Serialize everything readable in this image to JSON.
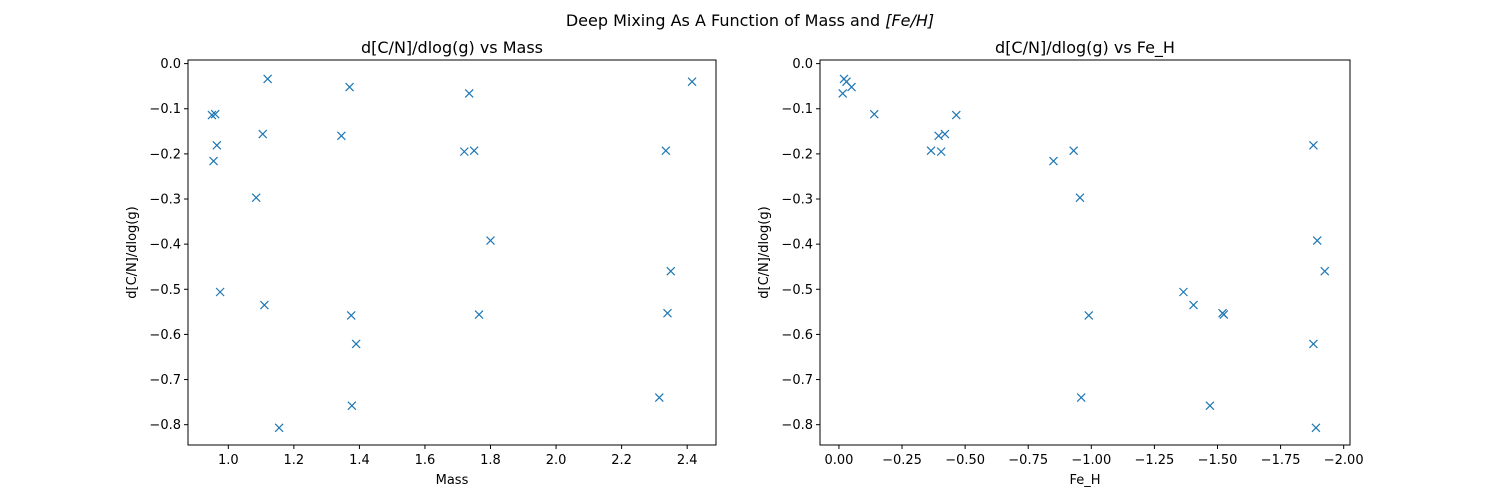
{
  "figure": {
    "suptitle_main": "Deep Mixing As A Function of Mass and ",
    "suptitle_math": "[Fe/H]"
  },
  "chart_data": [
    {
      "type": "scatter",
      "title": "d[C/N]/dlog(g) vs Mass",
      "xlabel": "Mass",
      "ylabel": "d[C/N]/dlog(g)",
      "xlim": [
        0.877,
        2.488
      ],
      "ylim": [
        -0.845,
        0.008
      ],
      "x_reversed": false,
      "xticks": [
        1.0,
        1.2,
        1.4,
        1.6,
        1.8,
        2.0,
        2.2,
        2.4
      ],
      "xtick_labels": [
        "1.0",
        "1.2",
        "1.4",
        "1.6",
        "1.8",
        "2.0",
        "2.2",
        "2.4"
      ],
      "yticks": [
        0.0,
        -0.1,
        -0.2,
        -0.3,
        -0.4,
        -0.5,
        -0.6,
        -0.7,
        -0.8
      ],
      "ytick_labels": [
        "0.0",
        "−0.1",
        "−0.2",
        "−0.3",
        "−0.4",
        "−0.5",
        "−0.6",
        "−0.7",
        "−0.8"
      ],
      "grid": false,
      "marker": "x",
      "color": "#1f77b4",
      "points": [
        {
          "x": 0.95,
          "y": -0.114
        },
        {
          "x": 0.96,
          "y": -0.112
        },
        {
          "x": 0.965,
          "y": -0.181
        },
        {
          "x": 0.955,
          "y": -0.216
        },
        {
          "x": 0.975,
          "y": -0.506
        },
        {
          "x": 1.085,
          "y": -0.297
        },
        {
          "x": 1.105,
          "y": -0.156
        },
        {
          "x": 1.11,
          "y": -0.535
        },
        {
          "x": 1.12,
          "y": -0.034
        },
        {
          "x": 1.155,
          "y": -0.807
        },
        {
          "x": 1.345,
          "y": -0.16
        },
        {
          "x": 1.37,
          "y": -0.052
        },
        {
          "x": 1.375,
          "y": -0.558
        },
        {
          "x": 1.377,
          "y": -0.758
        },
        {
          "x": 1.39,
          "y": -0.621
        },
        {
          "x": 1.72,
          "y": -0.195
        },
        {
          "x": 1.735,
          "y": -0.066
        },
        {
          "x": 1.75,
          "y": -0.193
        },
        {
          "x": 1.765,
          "y": -0.556
        },
        {
          "x": 1.8,
          "y": -0.392
        },
        {
          "x": 2.315,
          "y": -0.74
        },
        {
          "x": 2.335,
          "y": -0.193
        },
        {
          "x": 2.34,
          "y": -0.553
        },
        {
          "x": 2.35,
          "y": -0.46
        },
        {
          "x": 2.415,
          "y": -0.04
        }
      ]
    },
    {
      "type": "scatter",
      "title": "d[C/N]/dlog(g) vs Fe_H",
      "xlabel": "Fe_H",
      "ylabel": "d[C/N]/dlog(g)",
      "xlim": [
        0.075,
        -2.025
      ],
      "ylim": [
        -0.845,
        0.008
      ],
      "x_reversed": true,
      "xticks": [
        0.0,
        -0.25,
        -0.5,
        -0.75,
        -1.0,
        -1.25,
        -1.5,
        -1.75,
        -2.0
      ],
      "xtick_labels": [
        "0.00",
        "−0.25",
        "−0.50",
        "−0.75",
        "−1.00",
        "−1.25",
        "−1.50",
        "−1.75",
        "−2.00"
      ],
      "yticks": [
        0.0,
        -0.1,
        -0.2,
        -0.3,
        -0.4,
        -0.5,
        -0.6,
        -0.7,
        -0.8
      ],
      "ytick_labels": [
        "0.0",
        "−0.1",
        "−0.2",
        "−0.3",
        "−0.4",
        "−0.5",
        "−0.6",
        "−0.7",
        "−0.8"
      ],
      "grid": false,
      "marker": "x",
      "color": "#1f77b4",
      "points": [
        {
          "x": -0.015,
          "y": -0.066
        },
        {
          "x": -0.02,
          "y": -0.034
        },
        {
          "x": -0.03,
          "y": -0.04
        },
        {
          "x": -0.05,
          "y": -0.052
        },
        {
          "x": -0.14,
          "y": -0.112
        },
        {
          "x": -0.365,
          "y": -0.193
        },
        {
          "x": -0.395,
          "y": -0.16
        },
        {
          "x": -0.405,
          "y": -0.195
        },
        {
          "x": -0.42,
          "y": -0.156
        },
        {
          "x": -0.465,
          "y": -0.114
        },
        {
          "x": -0.85,
          "y": -0.216
        },
        {
          "x": -0.93,
          "y": -0.193
        },
        {
          "x": -0.955,
          "y": -0.297
        },
        {
          "x": -0.96,
          "y": -0.74
        },
        {
          "x": -0.99,
          "y": -0.558
        },
        {
          "x": -1.365,
          "y": -0.506
        },
        {
          "x": -1.405,
          "y": -0.535
        },
        {
          "x": -1.47,
          "y": -0.758
        },
        {
          "x": -1.52,
          "y": -0.553
        },
        {
          "x": -1.525,
          "y": -0.556
        },
        {
          "x": -1.88,
          "y": -0.181
        },
        {
          "x": -1.88,
          "y": -0.621
        },
        {
          "x": -1.89,
          "y": -0.807
        },
        {
          "x": -1.895,
          "y": -0.392
        },
        {
          "x": -1.925,
          "y": -0.46
        }
      ]
    }
  ]
}
